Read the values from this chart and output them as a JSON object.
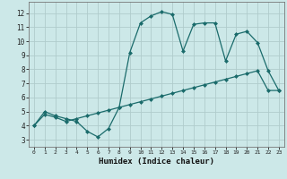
{
  "xlabel": "Humidex (Indice chaleur)",
  "background_color": "#cce8e8",
  "grid_color": "#b0cccc",
  "line_color": "#1a6b6b",
  "xlim": [
    -0.5,
    23.5
  ],
  "ylim": [
    2.5,
    12.8
  ],
  "yticks": [
    3,
    4,
    5,
    6,
    7,
    8,
    9,
    10,
    11,
    12
  ],
  "xticks": [
    0,
    1,
    2,
    3,
    4,
    5,
    6,
    7,
    8,
    9,
    10,
    11,
    12,
    13,
    14,
    15,
    16,
    17,
    18,
    19,
    20,
    21,
    22,
    23
  ],
  "xtick_labels": [
    "0",
    "1",
    "2",
    "3",
    "4",
    "5",
    "6",
    "7",
    "8",
    "9",
    "10",
    "11",
    "12",
    "13",
    "14",
    "15",
    "16",
    "17",
    "18",
    "19",
    "20",
    "21",
    "22",
    "23"
  ],
  "line1_x": [
    0,
    1,
    2,
    3,
    4,
    5,
    6,
    7,
    8,
    9,
    10,
    11,
    12,
    13,
    14,
    15,
    16,
    17,
    18,
    19,
    20,
    21,
    22,
    23
  ],
  "line1_y": [
    4.0,
    5.0,
    4.7,
    4.5,
    4.3,
    3.6,
    3.2,
    3.8,
    5.3,
    9.2,
    11.3,
    11.8,
    12.1,
    11.9,
    9.3,
    11.2,
    11.3,
    11.3,
    8.6,
    10.5,
    10.7,
    9.9,
    7.9,
    6.5
  ],
  "line2_x": [
    0,
    1,
    2,
    3,
    4,
    5,
    6,
    7,
    8,
    9,
    10,
    11,
    12,
    13,
    14,
    15,
    16,
    17,
    18,
    19,
    20,
    21,
    22,
    23
  ],
  "line2_y": [
    4.0,
    4.8,
    4.6,
    4.3,
    4.5,
    4.7,
    4.9,
    5.1,
    5.3,
    5.5,
    5.7,
    5.9,
    6.1,
    6.3,
    6.5,
    6.7,
    6.9,
    7.1,
    7.3,
    7.5,
    7.7,
    7.9,
    6.5,
    6.5
  ],
  "marker": "D",
  "marker_size": 2,
  "line_width": 0.9
}
